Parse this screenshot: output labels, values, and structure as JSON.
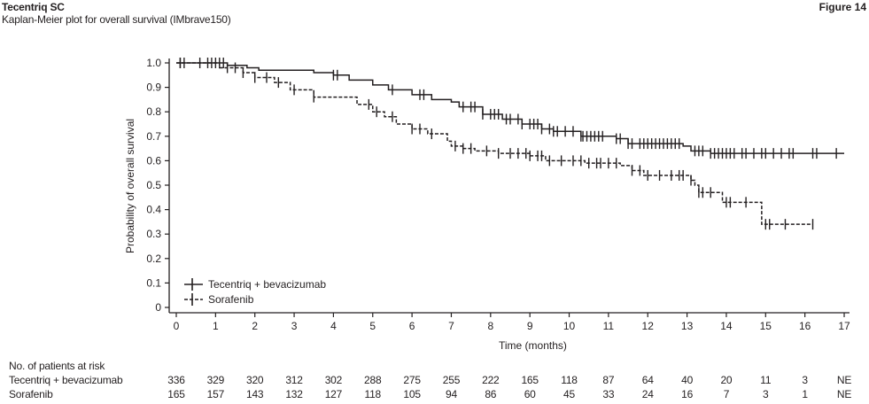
{
  "header": {
    "title": "Tecentriq SC",
    "subtitle": "Kaplan-Meier plot for overall survival (IMbrave150)",
    "figure_label": "Figure 14"
  },
  "chart_data": {
    "type": "line",
    "title": "Kaplan-Meier plot for overall survival (IMbrave150)",
    "xlabel": "Time (months)",
    "ylabel": "Probability of overall survival",
    "xlim": [
      0,
      17
    ],
    "ylim": [
      0,
      1.0
    ],
    "xticks": [
      "0",
      "1",
      "2",
      "3",
      "4",
      "5",
      "6",
      "7",
      "8",
      "9",
      "10",
      "11",
      "12",
      "13",
      "14",
      "15",
      "16",
      "17"
    ],
    "yticks": [
      "0",
      "0.1",
      "0.2",
      "0.3",
      "0.4",
      "0.5",
      "0.6",
      "0.7",
      "0.8",
      "0.9",
      "1.0"
    ],
    "legend_position": "bottom-left",
    "series": [
      {
        "name": "Tecentriq + bevacizumab",
        "style": "solid",
        "steps": [
          [
            0,
            1.0
          ],
          [
            1.3,
            0.99
          ],
          [
            1.8,
            0.98
          ],
          [
            2.1,
            0.97
          ],
          [
            3.5,
            0.96
          ],
          [
            4.0,
            0.95
          ],
          [
            4.4,
            0.93
          ],
          [
            5.0,
            0.91
          ],
          [
            5.4,
            0.89
          ],
          [
            6.0,
            0.87
          ],
          [
            6.5,
            0.85
          ],
          [
            7.0,
            0.84
          ],
          [
            7.2,
            0.82
          ],
          [
            7.8,
            0.79
          ],
          [
            8.3,
            0.77
          ],
          [
            8.8,
            0.75
          ],
          [
            9.3,
            0.73
          ],
          [
            9.6,
            0.72
          ],
          [
            10.3,
            0.7
          ],
          [
            11.2,
            0.69
          ],
          [
            11.5,
            0.67
          ],
          [
            12.9,
            0.66
          ],
          [
            13.1,
            0.64
          ],
          [
            13.6,
            0.63
          ],
          [
            17.0,
            0.63
          ]
        ],
        "censored": [
          0.1,
          0.2,
          0.6,
          0.8,
          1.0,
          1.1,
          1.2,
          4.0,
          4.1,
          5.5,
          6.2,
          6.3,
          7.3,
          7.5,
          7.6,
          7.8,
          8.0,
          8.1,
          8.2,
          8.4,
          8.5,
          8.7,
          8.8,
          9.0,
          9.1,
          9.2,
          9.3,
          9.5,
          9.6,
          9.7,
          9.9,
          10.1,
          10.3,
          10.35,
          10.45,
          10.55,
          10.65,
          10.75,
          10.85,
          11.2,
          11.3,
          11.5,
          11.6,
          11.8,
          11.9,
          12.0,
          12.1,
          12.2,
          12.3,
          12.4,
          12.5,
          12.6,
          12.7,
          12.8,
          13.2,
          13.3,
          13.4,
          13.6,
          13.7,
          13.8,
          13.9,
          14.0,
          14.1,
          14.2,
          14.4,
          14.5,
          14.7,
          14.9,
          15.0,
          15.2,
          15.4,
          15.6,
          15.7,
          16.2,
          16.3,
          16.8
        ]
      },
      {
        "name": "Sorafenib",
        "style": "dashed",
        "steps": [
          [
            0,
            1.0
          ],
          [
            1.1,
            0.98
          ],
          [
            1.7,
            0.96
          ],
          [
            2.0,
            0.94
          ],
          [
            2.5,
            0.92
          ],
          [
            2.9,
            0.89
          ],
          [
            3.5,
            0.86
          ],
          [
            4.6,
            0.83
          ],
          [
            5.0,
            0.8
          ],
          [
            5.3,
            0.78
          ],
          [
            5.6,
            0.75
          ],
          [
            6.0,
            0.73
          ],
          [
            6.4,
            0.71
          ],
          [
            6.9,
            0.68
          ],
          [
            7.0,
            0.66
          ],
          [
            7.3,
            0.65
          ],
          [
            7.6,
            0.64
          ],
          [
            8.2,
            0.63
          ],
          [
            9.0,
            0.62
          ],
          [
            9.4,
            0.6
          ],
          [
            10.4,
            0.59
          ],
          [
            11.3,
            0.58
          ],
          [
            11.6,
            0.56
          ],
          [
            11.9,
            0.54
          ],
          [
            13.1,
            0.52
          ],
          [
            13.2,
            0.5
          ],
          [
            13.3,
            0.47
          ],
          [
            13.9,
            0.43
          ],
          [
            14.9,
            0.34
          ],
          [
            16.2,
            0.34
          ]
        ],
        "censored": [
          0.1,
          0.9,
          1.3,
          1.5,
          1.7,
          2.0,
          2.3,
          2.6,
          3.0,
          3.5,
          4.9,
          5.1,
          5.5,
          6.0,
          6.2,
          6.5,
          7.1,
          7.3,
          7.5,
          7.9,
          8.2,
          8.5,
          8.7,
          8.9,
          9.0,
          9.2,
          9.3,
          9.5,
          9.8,
          10.1,
          10.3,
          10.5,
          10.7,
          10.8,
          11.0,
          11.2,
          11.6,
          11.8,
          12.0,
          12.3,
          12.6,
          12.8,
          12.9,
          13.1,
          13.3,
          13.4,
          13.6,
          14.0,
          14.1,
          14.5,
          15.0,
          15.1,
          15.5,
          16.2
        ]
      }
    ]
  },
  "risk_table": {
    "title": "No. of patients at risk",
    "rows": [
      {
        "label": "Tecentriq + bevacizumab",
        "values": [
          "336",
          "329",
          "320",
          "312",
          "302",
          "288",
          "275",
          "255",
          "222",
          "165",
          "118",
          "87",
          "64",
          "40",
          "20",
          "11",
          "3",
          "NE"
        ]
      },
      {
        "label": "Sorafenib",
        "values": [
          "165",
          "157",
          "143",
          "132",
          "127",
          "118",
          "105",
          "94",
          "86",
          "60",
          "45",
          "33",
          "24",
          "16",
          "7",
          "3",
          "1",
          "NE"
        ]
      }
    ]
  }
}
